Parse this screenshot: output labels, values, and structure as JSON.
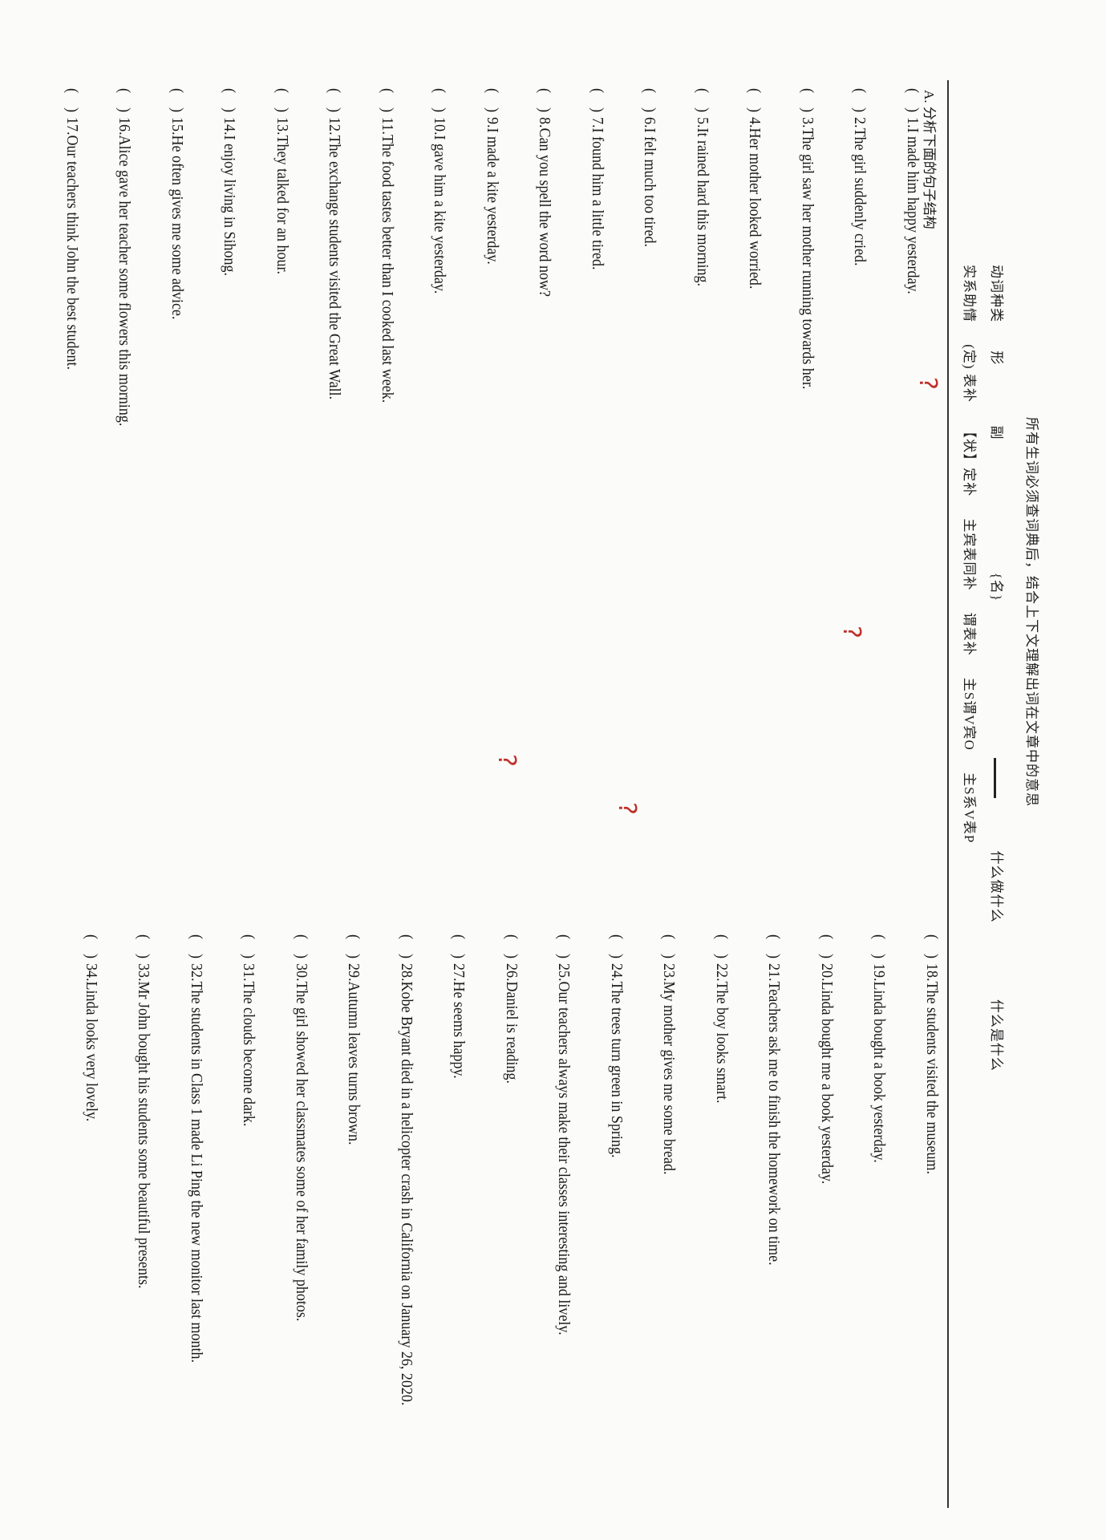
{
  "header": {
    "title": "所有生词必须查词典后，结合上下文理解出词在文章中的意思",
    "row2": [
      "动词种类",
      "形",
      "副",
      "{名}",
      "",
      "什么做什么",
      "什么是什么"
    ],
    "row3": [
      "实系助情",
      "(定) 表补",
      "【状】定补",
      "主宾表同补",
      "谓表补",
      "主S谓V宾O",
      "主S系V表P"
    ]
  },
  "section_a": "A. 分析下面的句子结构",
  "left_items": [
    {
      "num": "1",
      "text": "I made him happy yesterday."
    },
    {
      "num": "2",
      "text": "The girl suddenly cried."
    },
    {
      "num": "3",
      "text": "The girl saw her mother running towards her."
    },
    {
      "num": "4",
      "text": "Her mother looked worried."
    },
    {
      "num": "5",
      "text": "It rained hard this morning."
    },
    {
      "num": "6",
      "text": "I felt much too tired."
    },
    {
      "num": "7",
      "text": "I found him a little tired."
    },
    {
      "num": "8",
      "text": "Can you spell the word now?"
    },
    {
      "num": "9",
      "text": "I made a kite yesterday."
    },
    {
      "num": "10",
      "text": "I gave him a kite yesterday."
    },
    {
      "num": "11",
      "text": "The food tastes better than I cooked last week."
    },
    {
      "num": "12",
      "text": "The exchange students visited the Great Wall."
    },
    {
      "num": "13",
      "text": "They talked for an hour."
    },
    {
      "num": "14",
      "text": "I enjoy living in Sihong."
    },
    {
      "num": "15",
      "text": "He often gives me some advice."
    },
    {
      "num": "16",
      "text": "Alice gave her teacher some flowers this morning."
    },
    {
      "num": "17",
      "text": "Our teachers think John the best student."
    }
  ],
  "right_items": [
    {
      "num": "18",
      "text": "The students visited the museum."
    },
    {
      "num": "19",
      "text": "Linda bought a book yesterday."
    },
    {
      "num": "20",
      "text": "Linda bought me a book yesterday."
    },
    {
      "num": "21",
      "text": "Teachers ask me to finish the homework on time."
    },
    {
      "num": "22",
      "text": "The boy looks smart."
    },
    {
      "num": "23",
      "text": "My mother gives me some bread."
    },
    {
      "num": "24",
      "text": "The trees turn green in Spring."
    },
    {
      "num": "25",
      "text": "Our teachers always make their classes interesting and lively."
    },
    {
      "num": "26",
      "text": "Daniel is reading."
    },
    {
      "num": "27",
      "text": "He seems happy."
    },
    {
      "num": "28",
      "text": "Kobe Bryant died in a helicopter crash in California on January 26, 2020."
    },
    {
      "num": "29",
      "text": "Autumn leaves turns brown."
    },
    {
      "num": "30",
      "text": "The girl showed her classmates some of her family photos."
    },
    {
      "num": "31",
      "text": "The clouds become dark."
    },
    {
      "num": "32",
      "text": "The students in Class 1 made Li Ping the new monitor last month."
    },
    {
      "num": "33",
      "text": "Mr John bought his students some beautiful presents."
    },
    {
      "num": "34",
      "text": "Linda looks very lovely."
    }
  ],
  "colors": {
    "ink": "#1a1a1a",
    "annotation_red": "#c0302a"
  }
}
